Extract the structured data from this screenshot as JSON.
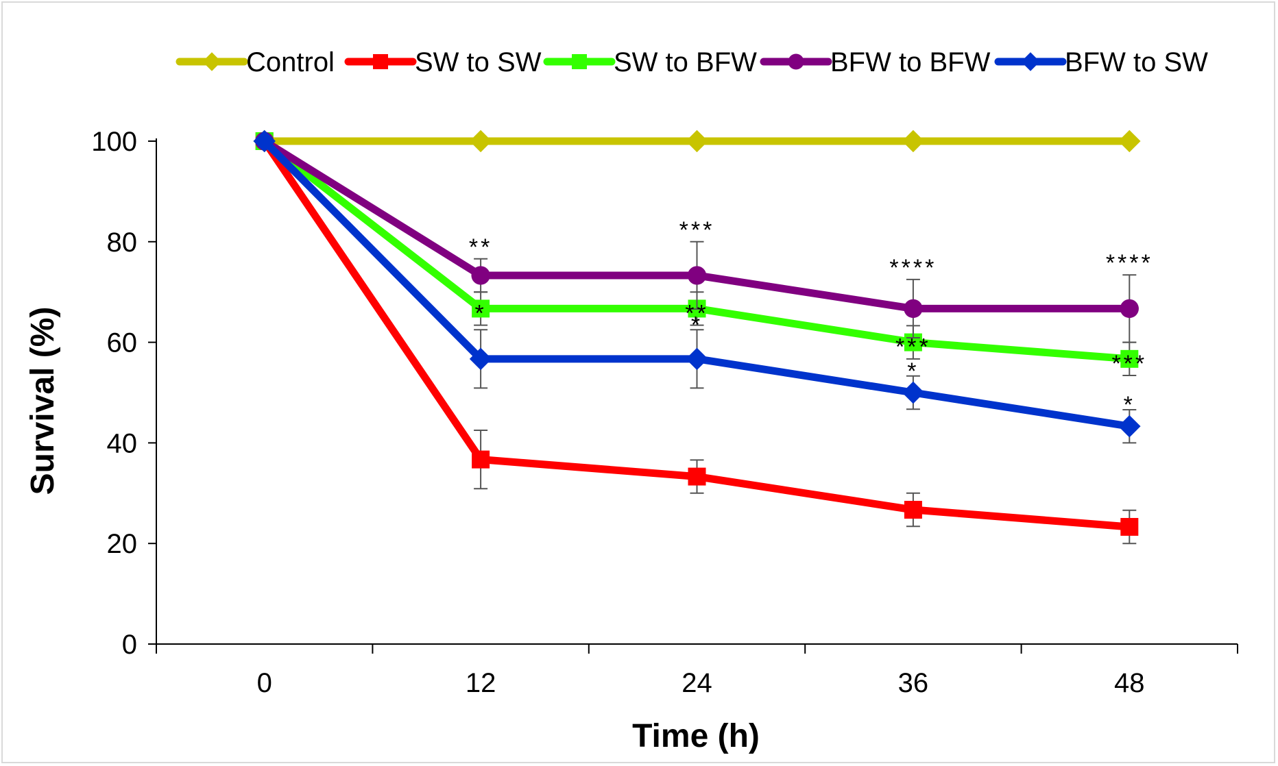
{
  "chart_data": {
    "type": "line",
    "title": "",
    "xlabel": "Time (h)",
    "ylabel": "Survival (%)",
    "categories": [
      "0",
      "12",
      "24",
      "36",
      "48"
    ],
    "ylim": [
      0,
      100
    ],
    "yticks": [
      0,
      20,
      40,
      60,
      80,
      100
    ],
    "legend_position": "top",
    "series": [
      {
        "name": "Control",
        "color": "#c8c400",
        "marker": "diamond",
        "values": [
          100,
          100,
          100,
          100,
          100
        ],
        "errors": [
          0,
          0,
          0,
          0,
          0
        ],
        "significance": [
          "",
          "",
          "",
          "",
          ""
        ]
      },
      {
        "name": "SW to SW",
        "color": "#ff0000",
        "marker": "square",
        "values": [
          100,
          36.7,
          33.3,
          26.7,
          23.3
        ],
        "errors": [
          0,
          5.8,
          3.3,
          3.3,
          3.3
        ],
        "significance": [
          "",
          "",
          "",
          "",
          ""
        ]
      },
      {
        "name": "SW to BFW",
        "color": "#33ff00",
        "marker": "square",
        "values": [
          100,
          66.7,
          66.7,
          60,
          56.7
        ],
        "errors": [
          0,
          3.3,
          3.3,
          3.3,
          3.3
        ],
        "significance": [
          "",
          "*",
          "**",
          "***",
          "***"
        ]
      },
      {
        "name": "BFW to BFW",
        "color": "#800080",
        "marker": "circle",
        "values": [
          100,
          73.3,
          73.3,
          66.7,
          66.7
        ],
        "errors": [
          0,
          3.3,
          6.7,
          5.8,
          6.7
        ],
        "significance": [
          "",
          "**",
          "***",
          "****",
          "****"
        ]
      },
      {
        "name": "BFW to SW",
        "color": "#0033cc",
        "marker": "diamond",
        "values": [
          100,
          56.7,
          56.7,
          50,
          43.3
        ],
        "errors": [
          0,
          5.8,
          5.8,
          3.3,
          3.3
        ],
        "significance": [
          "",
          "",
          "*",
          "*",
          "*"
        ]
      }
    ]
  }
}
